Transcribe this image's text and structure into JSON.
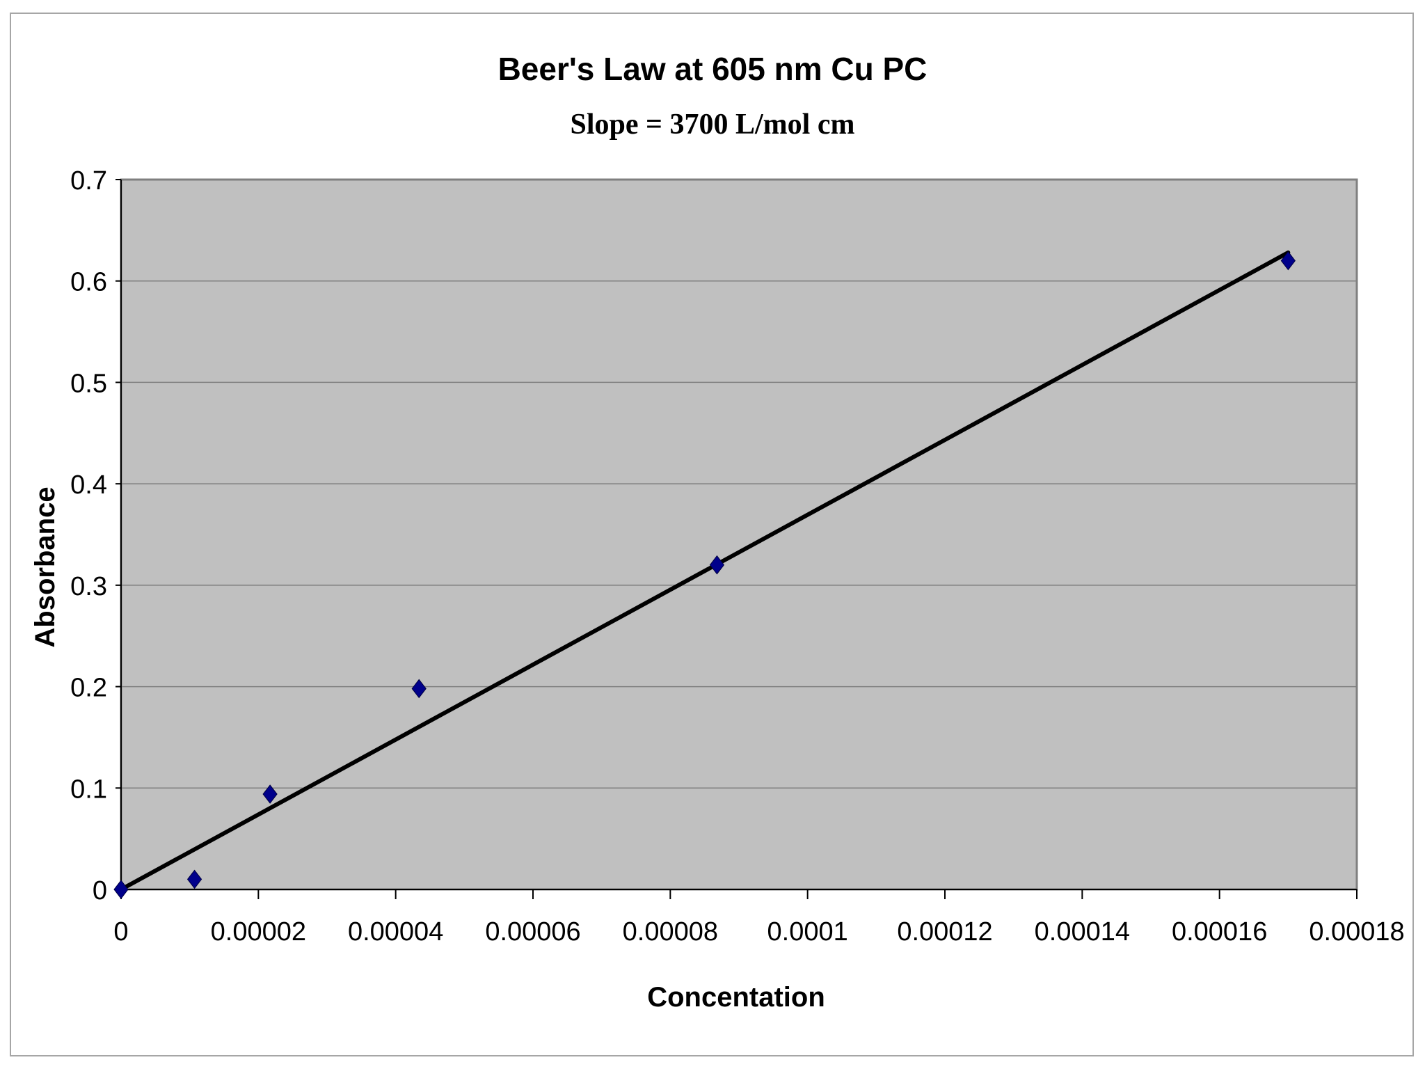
{
  "chart_data": {
    "type": "scatter",
    "title": "Beer's Law at 605 nm Cu PC",
    "subtitle": "Slope = 3700 L/mol cm",
    "xlabel": "Concentation",
    "ylabel": "Absorbance",
    "xlim": [
      0,
      0.00018
    ],
    "ylim": [
      0,
      0.7
    ],
    "x_ticks": [
      "0",
      "0.00002",
      "0.00004",
      "0.00006",
      "0.00008",
      "0.0001",
      "0.00012",
      "0.00014",
      "0.00016",
      "0.00018"
    ],
    "y_ticks": [
      "0",
      "0.1",
      "0.2",
      "0.3",
      "0.4",
      "0.5",
      "0.6",
      "0.7"
    ],
    "grid": "horizontal",
    "series": [
      {
        "marker": "diamond",
        "color": "#00008b",
        "points": [
          {
            "x": 0,
            "y": 0
          },
          {
            "x": 1.07e-05,
            "y": 0.01
          },
          {
            "x": 2.17e-05,
            "y": 0.094
          },
          {
            "x": 4.34e-05,
            "y": 0.198
          },
          {
            "x": 8.68e-05,
            "y": 0.32
          },
          {
            "x": 0.00017,
            "y": 0.62
          }
        ]
      }
    ],
    "trendline": {
      "color": "#000000",
      "from": {
        "x": 0,
        "y": 0
      },
      "to": {
        "x": 0.00017,
        "y": 0.628
      }
    },
    "plot_background": "#c0c0c0"
  }
}
